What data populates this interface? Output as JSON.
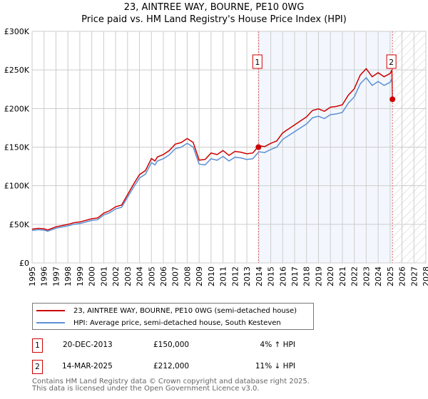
{
  "title": "23, AINTREE WAY, BOURNE, PE10 0WG",
  "subtitle": "Price paid vs. HM Land Registry's House Price Index (HPI)",
  "chart_data": {
    "type": "line",
    "xlim": [
      1995,
      2028
    ],
    "ylim": [
      0,
      300000
    ],
    "yticks": [
      {
        "v": 0,
        "label": "£0"
      },
      {
        "v": 50000,
        "label": "£50K"
      },
      {
        "v": 100000,
        "label": "£100K"
      },
      {
        "v": 150000,
        "label": "£150K"
      },
      {
        "v": 200000,
        "label": "£200K"
      },
      {
        "v": 250000,
        "label": "£250K"
      },
      {
        "v": 300000,
        "label": "£300K"
      }
    ],
    "xticks": [
      "1995",
      "1996",
      "1997",
      "1998",
      "1999",
      "2000",
      "2001",
      "2002",
      "2003",
      "2004",
      "2005",
      "2006",
      "2007",
      "2008",
      "2009",
      "2010",
      "2011",
      "2012",
      "2013",
      "2014",
      "2015",
      "2016",
      "2017",
      "2018",
      "2019",
      "2020",
      "2021",
      "2022",
      "2023",
      "2024",
      "2025",
      "2026",
      "2027",
      "2028"
    ],
    "hpi_series": {
      "name": "HPI: Average price, semi-detached house, South Kesteven",
      "color": "#5b8fd4",
      "x": [
        1995,
        1995.5,
        1996,
        1996.3,
        1997,
        1998,
        1998.5,
        1999,
        2000,
        2000.5,
        2001,
        2001.5,
        2002,
        2002.5,
        2003,
        2003.5,
        2004,
        2004.5,
        2005,
        2005.3,
        2005.5,
        2006,
        2006.5,
        2007,
        2007.5,
        2008,
        2008.5,
        2009,
        2009.5,
        2010,
        2010.5,
        2011,
        2011.5,
        2012,
        2012.5,
        2013,
        2013.5,
        2014,
        2014.5,
        2015,
        2015.5,
        2016,
        2016.5,
        2017,
        2017.5,
        2018,
        2018.5,
        2019,
        2019.5,
        2020,
        2020.5,
        2021,
        2021.5,
        2022,
        2022.5,
        2023,
        2023.5,
        2024,
        2024.5,
        2025,
        2025.15
      ],
      "y": [
        42000,
        43000,
        42500,
        41000,
        45000,
        48000,
        50000,
        51000,
        55000,
        56000,
        62000,
        65000,
        70000,
        72000,
        85000,
        98000,
        110000,
        115000,
        130000,
        127000,
        132000,
        135000,
        140000,
        148000,
        150000,
        155000,
        150000,
        128000,
        127000,
        135000,
        133000,
        138000,
        132000,
        137000,
        136000,
        134000,
        135000,
        144000,
        143000,
        147000,
        150000,
        160000,
        165000,
        170000,
        175000,
        180000,
        188000,
        190000,
        187000,
        192000,
        193000,
        195000,
        207000,
        215000,
        232000,
        240000,
        230000,
        235000,
        230000,
        234000,
        238000
      ]
    },
    "price_series": {
      "name": "23, AINTREE WAY, BOURNE, PE10 0WG (semi-detached house)",
      "color": "#cc0000"
    },
    "sales": [
      {
        "id": "1",
        "x": 2013.97,
        "date": "20-DEC-2013",
        "price": 150000,
        "price_label": "£150,000",
        "hpi": "4% ↑ HPI"
      },
      {
        "id": "2",
        "x": 2025.2,
        "date": "14-MAR-2025",
        "price": 212000,
        "price_label": "£212,000",
        "hpi": "11% ↓ HPI"
      }
    ]
  },
  "footer": [
    "Contains HM Land Registry data © Crown copyright and database right 2025.",
    "This data is licensed under the Open Government Licence v3.0."
  ]
}
